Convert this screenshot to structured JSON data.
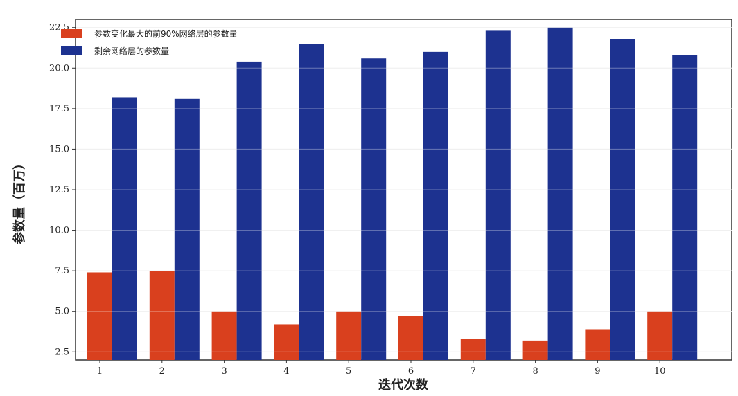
{
  "chart_data": {
    "type": "bar",
    "title": "",
    "xlabel": "迭代次数",
    "ylabel": "参数量（百万）",
    "categories": [
      "1",
      "2",
      "3",
      "4",
      "5",
      "6",
      "7",
      "8",
      "9",
      "10"
    ],
    "series": [
      {
        "name": "参数变化最大的前90%网络层的参数量",
        "color": "#d9401e",
        "values": [
          7.4,
          7.5,
          5.0,
          4.2,
          5.0,
          4.7,
          3.3,
          3.2,
          3.9,
          5.0
        ]
      },
      {
        "name": "剩余网络层的参数量",
        "color": "#1d3290",
        "values": [
          18.2,
          18.1,
          20.4,
          21.5,
          20.6,
          21.0,
          22.3,
          22.5,
          21.8,
          20.8
        ]
      }
    ],
    "yticks": [
      "2.5",
      "5.0",
      "7.5",
      "10.0",
      "12.5",
      "15.0",
      "17.5",
      "20.0",
      "22.5"
    ],
    "ylim": [
      2.0,
      23.0
    ],
    "grid": true,
    "legend_position": "top-left"
  }
}
